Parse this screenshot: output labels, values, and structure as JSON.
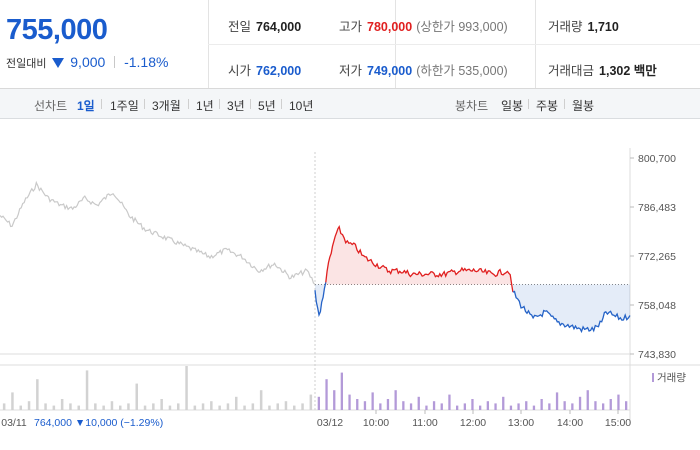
{
  "summary": {
    "price": "755,000",
    "change_label": "전일대비",
    "change_value": "9,000",
    "change_pct": "-1.18%"
  },
  "info": {
    "prev_close": {
      "label": "전일",
      "value": "764,000"
    },
    "open": {
      "label": "시가",
      "value": "762,000"
    },
    "high": {
      "label": "고가",
      "value": "780,000",
      "sub": "(상한가 993,000)"
    },
    "low": {
      "label": "저가",
      "value": "749,000",
      "sub": "(하한가 535,000)"
    },
    "volume": {
      "label": "거래량",
      "value": "1,710"
    },
    "amount": {
      "label": "거래대금",
      "value": "1,302 백만"
    }
  },
  "tabs": {
    "line_label": "선차트",
    "line_items": [
      "1일",
      "1주일",
      "3개월",
      "1년",
      "3년",
      "5년",
      "10년"
    ],
    "active_line": "1일",
    "candle_label": "봉차트",
    "candle_items": [
      "일봉",
      "주봉",
      "월봉"
    ]
  },
  "colors": {
    "up": "#e02020",
    "down": "#2563c7",
    "prev": "#c9c9c9",
    "volume": "#b39ad8",
    "accent": "#1a5ccd"
  },
  "chart_data": {
    "type": "line",
    "y_ticks": [
      "800,700",
      "786,483",
      "772,265",
      "758,048",
      "743,830"
    ],
    "ylim": [
      743830,
      800700
    ],
    "x_labels": [
      "03/11",
      "03/12",
      "10:00",
      "11:00",
      "12:00",
      "13:00",
      "14:00",
      "15:00"
    ],
    "reference_price": 764000,
    "prev_day_caption": "03/11  764,000 ▼10,000 (−1.29%)",
    "volume_legend": "거래량",
    "series": [
      {
        "day": "prev",
        "time": [
          "09:00",
          "09:15",
          "09:30",
          "09:45",
          "10:00",
          "10:15",
          "10:30",
          "10:45",
          "11:00",
          "11:20",
          "11:40",
          "12:00",
          "12:20",
          "12:40",
          "13:00",
          "13:20",
          "13:40",
          "14:00",
          "14:20",
          "14:40",
          "15:00",
          "15:20",
          "15:30"
        ],
        "values": [
          784000,
          781000,
          788000,
          793000,
          789000,
          787000,
          786000,
          789000,
          787000,
          791000,
          784000,
          780000,
          778000,
          776000,
          774000,
          772000,
          774000,
          772000,
          768000,
          770000,
          766000,
          768000,
          764000
        ]
      },
      {
        "day": "today",
        "time": [
          "09:00",
          "09:05",
          "09:10",
          "09:15",
          "09:20",
          "09:25",
          "09:30",
          "09:40",
          "09:50",
          "10:00",
          "10:15",
          "10:30",
          "10:45",
          "11:00",
          "11:20",
          "11:40",
          "12:00",
          "12:20",
          "12:40",
          "13:00",
          "13:05",
          "13:15",
          "13:30",
          "13:45",
          "14:00",
          "14:15",
          "14:30",
          "14:45",
          "14:55",
          "15:00",
          "15:10",
          "15:20",
          "15:30"
        ],
        "values": [
          762000,
          755000,
          760000,
          768000,
          773000,
          778000,
          780000,
          776000,
          775000,
          772000,
          770000,
          768000,
          768000,
          767000,
          767000,
          767000,
          768000,
          768000,
          767000,
          768000,
          762000,
          758000,
          754000,
          756000,
          753000,
          752000,
          751000,
          751000,
          753000,
          756000,
          755000,
          754000,
          755000
        ]
      }
    ],
    "volume": {
      "prev": [
        3,
        8,
        2,
        4,
        14,
        3,
        2,
        5,
        3,
        2,
        18,
        3,
        2,
        4,
        2,
        3,
        12,
        2,
        3,
        5,
        2,
        3,
        20,
        2,
        3,
        4,
        2,
        3,
        6,
        2,
        3,
        9,
        2,
        3,
        4,
        2,
        3,
        7
      ],
      "today": [
        6,
        14,
        9,
        17,
        7,
        5,
        4,
        8,
        3,
        5,
        9,
        4,
        3,
        6,
        2,
        4,
        3,
        7,
        2,
        3,
        5,
        2,
        4,
        3,
        6,
        2,
        3,
        4,
        2,
        5,
        3,
        8,
        4,
        3,
        6,
        9,
        4,
        3,
        5,
        7,
        4
      ]
    }
  }
}
